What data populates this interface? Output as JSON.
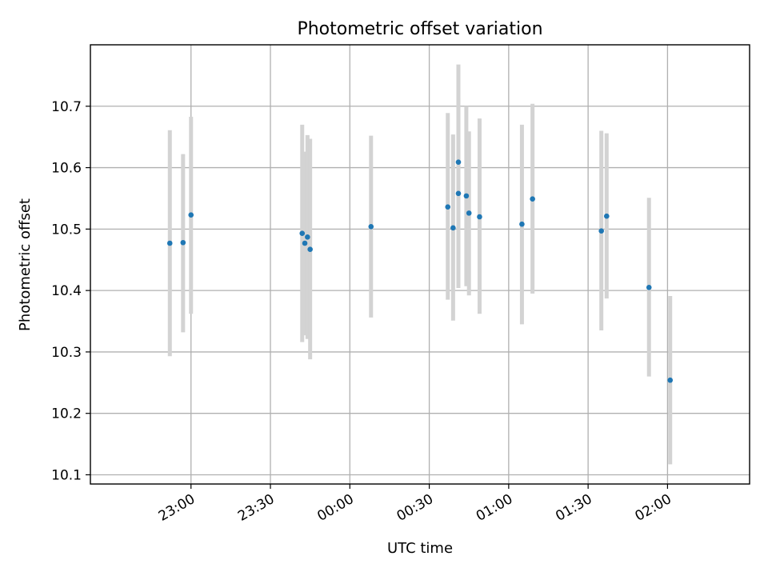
{
  "chart_data": {
    "type": "scatter",
    "title": "Photometric offset variation",
    "xlabel": "UTC time",
    "ylabel": "Photometric offset",
    "x_is_time": true,
    "xlim": [
      "22:22",
      "02:31"
    ],
    "ylim": [
      10.085,
      10.8
    ],
    "yticks": [
      10.1,
      10.2,
      10.3,
      10.4,
      10.5,
      10.6,
      10.7
    ],
    "ytick_labels": [
      "10.1",
      "10.2",
      "10.3",
      "10.4",
      "10.5",
      "10.6",
      "10.7"
    ],
    "xticks": [
      "23:00",
      "23:30",
      "00:00",
      "00:30",
      "01:00",
      "01:30",
      "02:00"
    ],
    "grid": true,
    "colors": {
      "point": "#1f77b4",
      "errorbar": "#d3d3d3",
      "grid": "#b0b0b0"
    },
    "series": [
      {
        "points": [
          {
            "x": "22:52",
            "y": 10.477,
            "ylo": 10.293,
            "yhi": 10.661
          },
          {
            "x": "22:57",
            "y": 10.478,
            "ylo": 10.332,
            "yhi": 10.622
          },
          {
            "x": "23:00",
            "y": 10.523,
            "ylo": 10.362,
            "yhi": 10.683
          },
          {
            "x": "23:42",
            "y": 10.493,
            "ylo": 10.316,
            "yhi": 10.67
          },
          {
            "x": "23:43",
            "y": 10.477,
            "ylo": 10.327,
            "yhi": 10.626
          },
          {
            "x": "23:44",
            "y": 10.487,
            "ylo": 10.321,
            "yhi": 10.653
          },
          {
            "x": "23:45",
            "y": 10.467,
            "ylo": 10.288,
            "yhi": 10.647
          },
          {
            "x": "00:08",
            "y": 10.504,
            "ylo": 10.356,
            "yhi": 10.652
          },
          {
            "x": "00:37",
            "y": 10.536,
            "ylo": 10.385,
            "yhi": 10.689
          },
          {
            "x": "00:39",
            "y": 10.502,
            "ylo": 10.351,
            "yhi": 10.654
          },
          {
            "x": "00:41",
            "y": 10.609,
            "ylo": 10.452,
            "yhi": 10.768
          },
          {
            "x": "00:41",
            "y": 10.558,
            "ylo": 10.404,
            "yhi": 10.712
          },
          {
            "x": "00:44",
            "y": 10.554,
            "ylo": 10.407,
            "yhi": 10.7
          },
          {
            "x": "00:45",
            "y": 10.526,
            "ylo": 10.392,
            "yhi": 10.659
          },
          {
            "x": "00:49",
            "y": 10.52,
            "ylo": 10.362,
            "yhi": 10.68
          },
          {
            "x": "01:05",
            "y": 10.508,
            "ylo": 10.345,
            "yhi": 10.67
          },
          {
            "x": "01:09",
            "y": 10.549,
            "ylo": 10.395,
            "yhi": 10.704
          },
          {
            "x": "01:35",
            "y": 10.497,
            "ylo": 10.335,
            "yhi": 10.66
          },
          {
            "x": "01:37",
            "y": 10.521,
            "ylo": 10.387,
            "yhi": 10.656
          },
          {
            "x": "01:53",
            "y": 10.405,
            "ylo": 10.26,
            "yhi": 10.551
          },
          {
            "x": "02:01",
            "y": 10.254,
            "ylo": 10.117,
            "yhi": 10.391
          }
        ]
      }
    ]
  }
}
